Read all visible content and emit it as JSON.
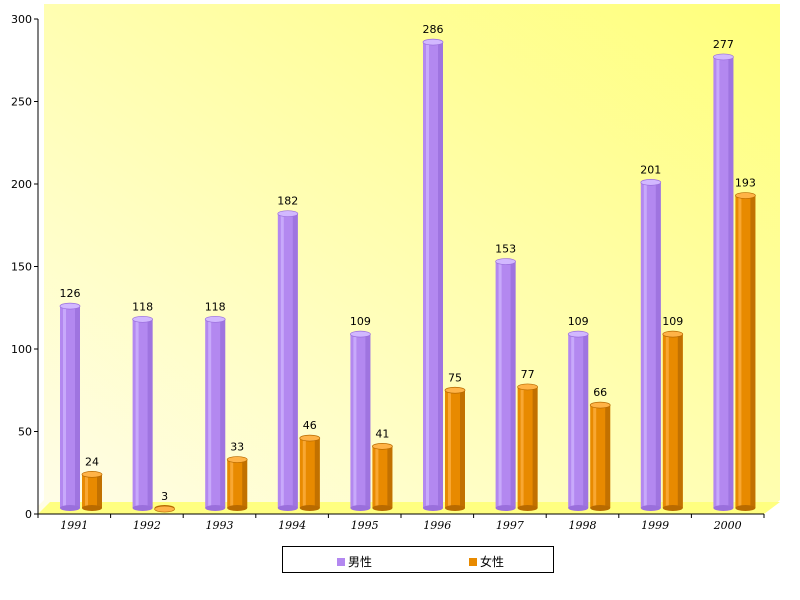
{
  "chart_data": {
    "type": "bar",
    "categories": [
      "1991",
      "1992",
      "1993",
      "1994",
      "1995",
      "1996",
      "1997",
      "1998",
      "1999",
      "2000"
    ],
    "series": [
      {
        "name": "男性",
        "values": [
          126,
          118,
          118,
          182,
          109,
          286,
          153,
          109,
          201,
          277
        ],
        "color": "#b388f0"
      },
      {
        "name": "女性",
        "values": [
          24,
          3,
          33,
          46,
          41,
          75,
          77,
          66,
          109,
          193
        ],
        "color": "#e88a00"
      }
    ],
    "ylim": [
      0,
      300
    ],
    "yticks": [
      0,
      50,
      100,
      150,
      200,
      250,
      300
    ],
    "yticks_labels": [
      "0",
      "50",
      "100",
      "150",
      "200",
      "250",
      "300"
    ],
    "data_labels": true,
    "legend_position": "bottom-center",
    "background_gradient": [
      "#fffbe6",
      "#ffff80"
    ]
  }
}
